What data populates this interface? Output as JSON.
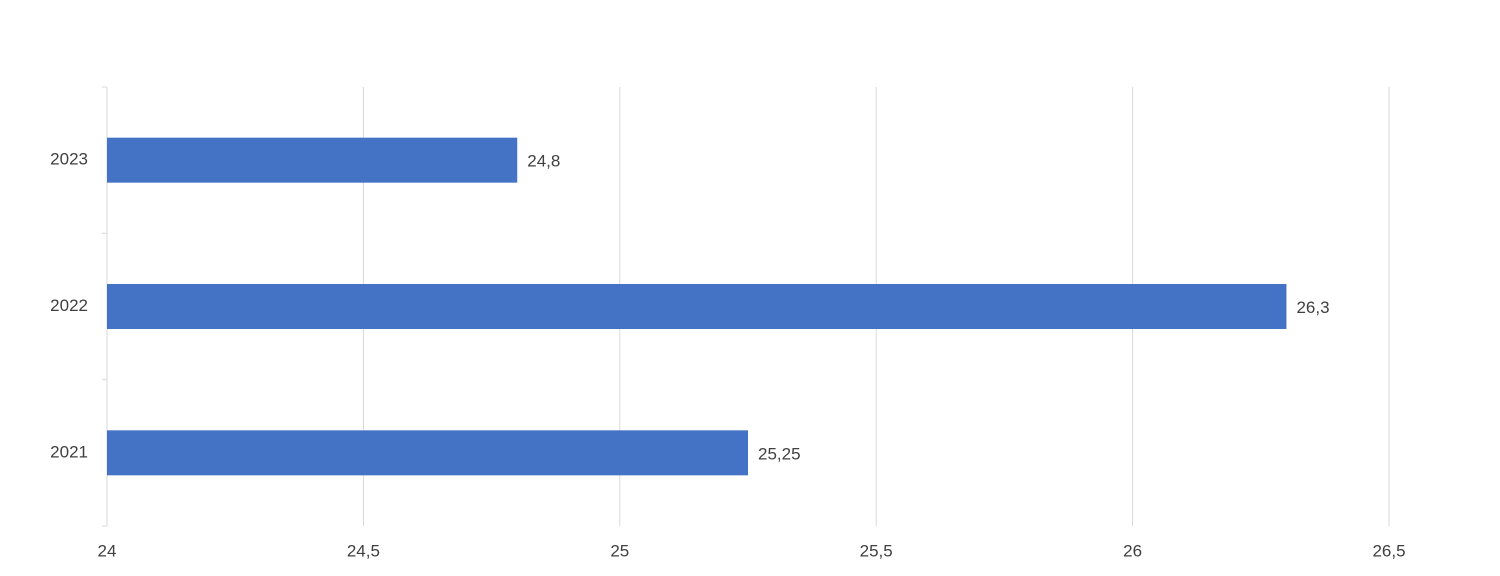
{
  "chart_data": {
    "type": "bar",
    "orientation": "horizontal",
    "categories": [
      "2021",
      "2022",
      "2023"
    ],
    "values": [
      25.25,
      26.3,
      24.8
    ],
    "value_labels": [
      "25,25",
      "26,3",
      "24,8"
    ],
    "color": "#4472c4",
    "xlim": [
      24,
      26.5
    ],
    "xticks": [
      24,
      {
        "value": 24.5,
        "label": "24,5"
      },
      25,
      {
        "value": 25.5,
        "label": "25,5"
      },
      26,
      {
        "value": 26.5,
        "label": "26,5"
      }
    ],
    "grid": true
  }
}
